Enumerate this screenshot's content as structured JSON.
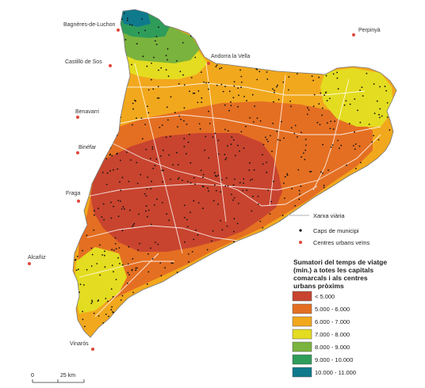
{
  "cities": [
    {
      "name": "Bagnères-de-Luchon"
    },
    {
      "name": "Perpinyà"
    },
    {
      "name": "Andorra la Vella"
    },
    {
      "name": "Castilló de Sos"
    },
    {
      "name": "Benavarri"
    },
    {
      "name": "Binéfar"
    },
    {
      "name": "Fraga"
    },
    {
      "name": "Alcañiz"
    },
    {
      "name": "Vinaròs"
    }
  ],
  "legend": {
    "road_label": "Xarxa viària",
    "caps_label": "Caps de municipi",
    "centers_label": "Centres urbans veïns",
    "title_lines": [
      "Sumatori del temps de viatge",
      "(min.) a totes les capitals",
      "comarcals i als centres",
      "urbans pròxims"
    ],
    "classes": [
      {
        "label": "< 5.000",
        "color": "#c8442f"
      },
      {
        "label": "5.000 - 6.000",
        "color": "#e46f22"
      },
      {
        "label": "6.000 - 7.000",
        "color": "#f2a81d"
      },
      {
        "label": "7.000 - 8.000",
        "color": "#e4dc20"
      },
      {
        "label": "8.000 - 9.000",
        "color": "#7ab33d"
      },
      {
        "label": "9.000 - 10.000",
        "color": "#2f9c5a"
      },
      {
        "label": "10.000 - 11.000",
        "color": "#0f7a8c"
      }
    ]
  },
  "scale": {
    "zero": "0",
    "end": "25 km"
  }
}
